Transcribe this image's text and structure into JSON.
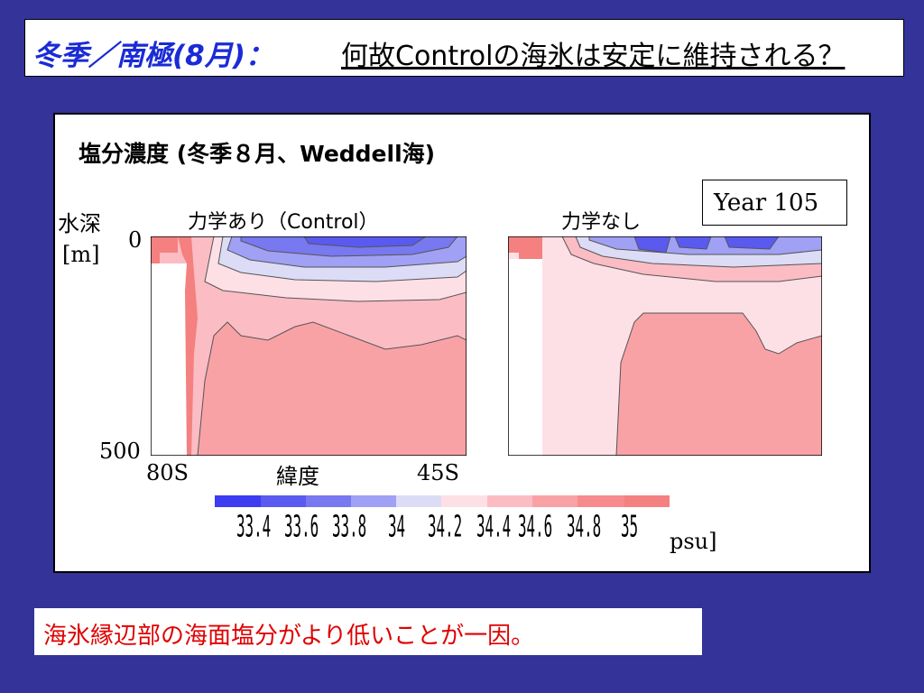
{
  "title": {
    "main": "冬季／南極(8月)：",
    "question": "何故Controlの海氷は安定に維持される？"
  },
  "figure": {
    "title": "塩分濃度 (冬季８月、Weddell海)",
    "year_label": "Year 105",
    "y_axis": {
      "label_line1": "水深",
      "label_line2": "[m]",
      "top": "0",
      "bottom": "500"
    },
    "x_axis": {
      "left": "80S",
      "label": "緯度",
      "right": "45S"
    },
    "panel_left_title": "力学あり（Control）",
    "panel_right_title": "力学なし",
    "colorbar": {
      "unit": "psu]",
      "ticks": [
        "33.4",
        "33.6",
        "33.8",
        "34",
        "34.2",
        "34.4",
        "34.6",
        "34.8",
        "35"
      ],
      "colors": [
        "#3c3cf0",
        "#5a5af0",
        "#7878f0",
        "#a0a0f4",
        "#dcdcf6",
        "#fde0e6",
        "#fbbcc4",
        "#f9a2a6",
        "#f78a8e",
        "#f48080"
      ]
    }
  },
  "footer": {
    "text": "海氷縁辺部の海面塩分がより低いことが一因。"
  }
}
